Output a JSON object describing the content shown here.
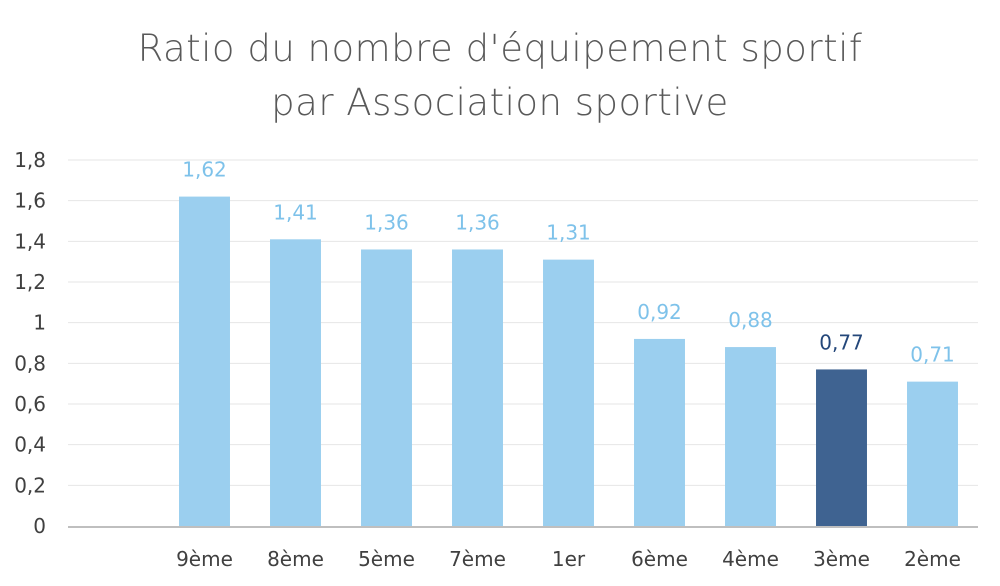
{
  "chart_data": {
    "type": "bar",
    "title_line1": "Ratio du nombre d'équipement sportif",
    "title_line2": "par Association sportive",
    "categories": [
      "",
      "9ème",
      "8ème",
      "5ème",
      "7ème",
      "1er",
      "6ème",
      "4ème",
      "3ème",
      "2ème"
    ],
    "values": [
      null,
      1.62,
      1.41,
      1.36,
      1.36,
      1.31,
      0.92,
      0.88,
      0.77,
      0.71
    ],
    "value_labels": [
      "",
      "1,62",
      "1,41",
      "1,36",
      "1,36",
      "1,31",
      "0,92",
      "0,88",
      "0,77",
      "0,71"
    ],
    "highlight_category": "3ème",
    "ylim": [
      0,
      1.8
    ],
    "yticks": [
      0,
      0.2,
      0.4,
      0.6,
      0.8,
      1,
      1.2,
      1.4,
      1.6,
      1.8
    ],
    "ytick_labels": [
      "0",
      "0,2",
      "0,4",
      "0,6",
      "0,8",
      "1",
      "1,2",
      "1,4",
      "1,6",
      "1,8"
    ],
    "grid": true,
    "colors": {
      "bar": "#9BCFEF",
      "bar_highlight": "#3F6391",
      "label": "#7EC2EA",
      "label_highlight": "#24477A",
      "grid": "#E6E6E6",
      "axis": "#BFBFBF"
    }
  }
}
